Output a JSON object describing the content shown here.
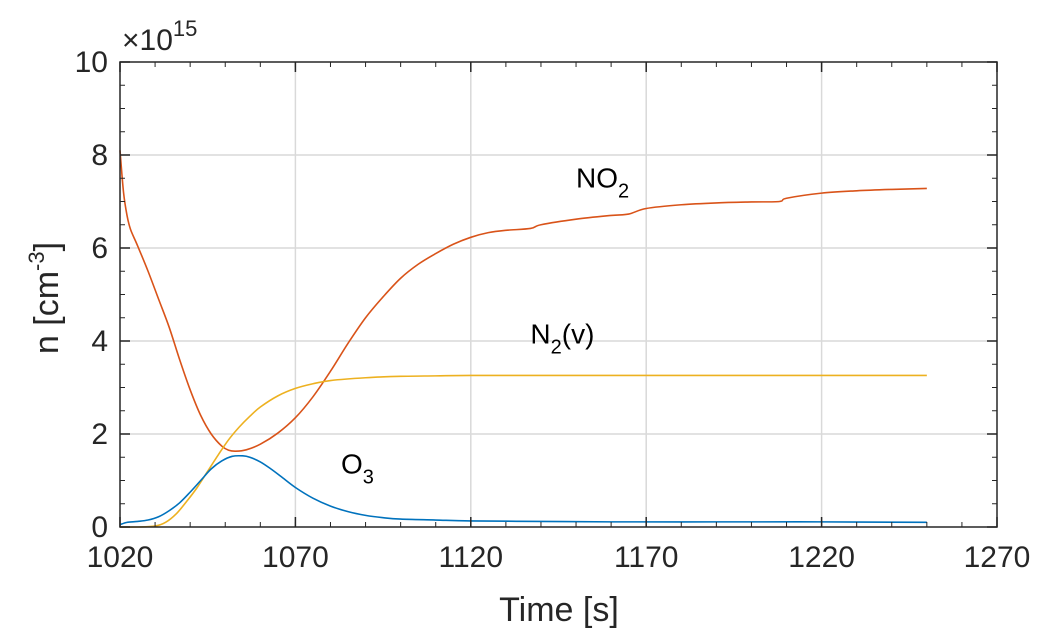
{
  "chart_data": {
    "type": "line",
    "xlabel": "Time [s]",
    "ylabel_main": "n [cm",
    "ylabel_sup": "-3",
    "ylabel_close": "]",
    "y_exponent": {
      "base": "×10",
      "power": "15"
    },
    "xlim": [
      1020,
      1270
    ],
    "ylim": [
      0,
      10
    ],
    "xticks": [
      1020,
      1070,
      1120,
      1170,
      1220,
      1270
    ],
    "yticks": [
      0,
      2,
      4,
      6,
      8,
      10
    ],
    "grid": true,
    "series": [
      {
        "name": "NO2",
        "color": "#D95319",
        "x": [
          1020,
          1021,
          1022,
          1023,
          1025,
          1028,
          1031,
          1034,
          1037,
          1040,
          1043,
          1046,
          1049,
          1051,
          1053,
          1056,
          1060,
          1065,
          1070,
          1075,
          1080,
          1085,
          1090,
          1095,
          1100,
          1105,
          1110,
          1115,
          1120,
          1125,
          1130,
          1137,
          1140,
          1150,
          1160,
          1165,
          1170,
          1180,
          1190,
          1200,
          1208,
          1210,
          1220,
          1230,
          1240,
          1250
        ],
        "y": [
          8.1,
          7.2,
          6.7,
          6.4,
          6.05,
          5.5,
          4.9,
          4.3,
          3.6,
          2.95,
          2.4,
          2.0,
          1.74,
          1.65,
          1.63,
          1.66,
          1.78,
          2.02,
          2.35,
          2.8,
          3.35,
          3.95,
          4.5,
          4.95,
          5.35,
          5.65,
          5.88,
          6.08,
          6.23,
          6.33,
          6.38,
          6.42,
          6.5,
          6.62,
          6.7,
          6.73,
          6.85,
          6.93,
          6.97,
          6.99,
          7.0,
          7.07,
          7.18,
          7.23,
          7.26,
          7.28
        ]
      },
      {
        "name": "N2(v)",
        "color": "#EDB120",
        "x": [
          1020,
          1025,
          1030,
          1033,
          1036,
          1039,
          1042,
          1045,
          1048,
          1051,
          1054,
          1057,
          1060,
          1065,
          1070,
          1075,
          1080,
          1090,
          1100,
          1110,
          1120,
          1140,
          1160,
          1190,
          1220,
          1250
        ],
        "y": [
          0.0,
          0.0,
          0.02,
          0.1,
          0.28,
          0.55,
          0.85,
          1.2,
          1.55,
          1.88,
          2.15,
          2.38,
          2.58,
          2.82,
          2.98,
          3.08,
          3.15,
          3.21,
          3.24,
          3.25,
          3.26,
          3.26,
          3.26,
          3.26,
          3.26,
          3.26
        ]
      },
      {
        "name": "O3",
        "color": "#0072BD",
        "x": [
          1020,
          1022,
          1025,
          1028,
          1031,
          1034,
          1037,
          1040,
          1043,
          1046,
          1049,
          1052,
          1055,
          1057,
          1060,
          1063,
          1066,
          1070,
          1075,
          1080,
          1085,
          1090,
          1095,
          1100,
          1110,
          1120,
          1140,
          1160,
          1190,
          1220,
          1250
        ],
        "y": [
          0.05,
          0.1,
          0.12,
          0.15,
          0.22,
          0.35,
          0.52,
          0.75,
          1.0,
          1.25,
          1.42,
          1.52,
          1.53,
          1.5,
          1.4,
          1.25,
          1.08,
          0.85,
          0.62,
          0.45,
          0.33,
          0.25,
          0.2,
          0.17,
          0.15,
          0.13,
          0.12,
          0.11,
          0.11,
          0.11,
          0.1
        ]
      }
    ],
    "annotations": [
      {
        "main": "NO",
        "sub": "2",
        "suffix": "",
        "x": 1150,
        "y": 7.3
      },
      {
        "main": "N",
        "sub": "2",
        "suffix": "(v)",
        "x": 1137,
        "y": 3.95
      },
      {
        "main": "O",
        "sub": "3",
        "suffix": "",
        "x": 1083,
        "y": 1.15
      }
    ]
  }
}
